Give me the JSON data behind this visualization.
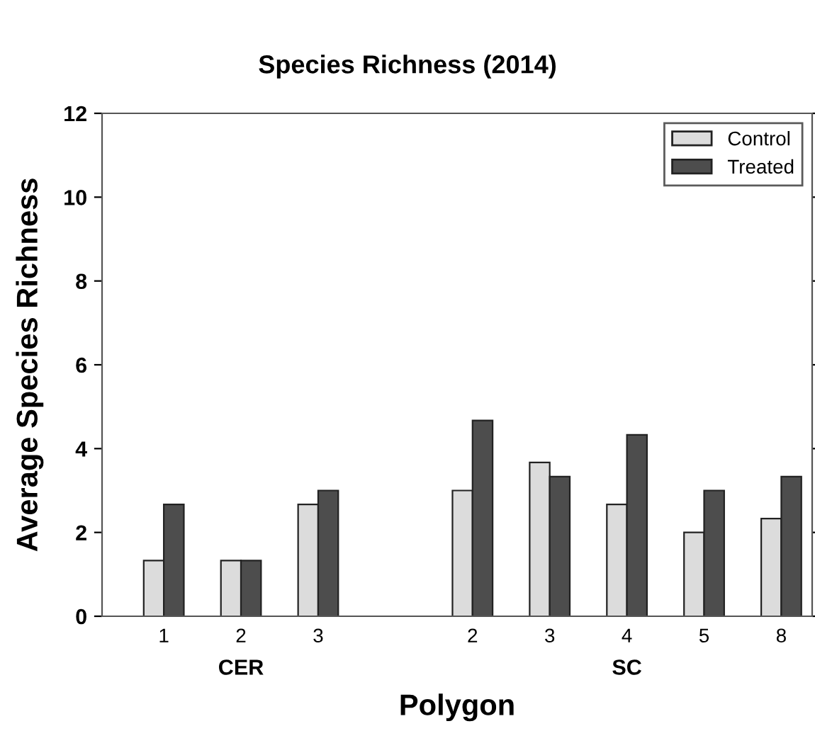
{
  "chart_data": {
    "type": "bar",
    "title": "Species Richness (2014)",
    "xlabel": "Polygon",
    "ylabel": "Average Species Richness",
    "categories": [
      "1",
      "2",
      "3",
      null,
      "2",
      "3",
      "4",
      "5",
      "8"
    ],
    "series": [
      {
        "name": "Control",
        "color": "#dcdcdc",
        "values": [
          1.33,
          1.33,
          2.67,
          null,
          3.0,
          3.67,
          2.67,
          2.0,
          2.33
        ]
      },
      {
        "name": "Treated",
        "color": "#4d4d4d",
        "values": [
          2.67,
          1.33,
          3.0,
          null,
          4.67,
          3.33,
          4.33,
          3.0,
          3.33
        ]
      }
    ],
    "annotations": [
      "CER",
      "SC"
    ],
    "ylim": [
      0,
      12
    ],
    "yticks": [
      0,
      2,
      4,
      6,
      8,
      10,
      12
    ],
    "grid": false,
    "legend": "top right"
  }
}
